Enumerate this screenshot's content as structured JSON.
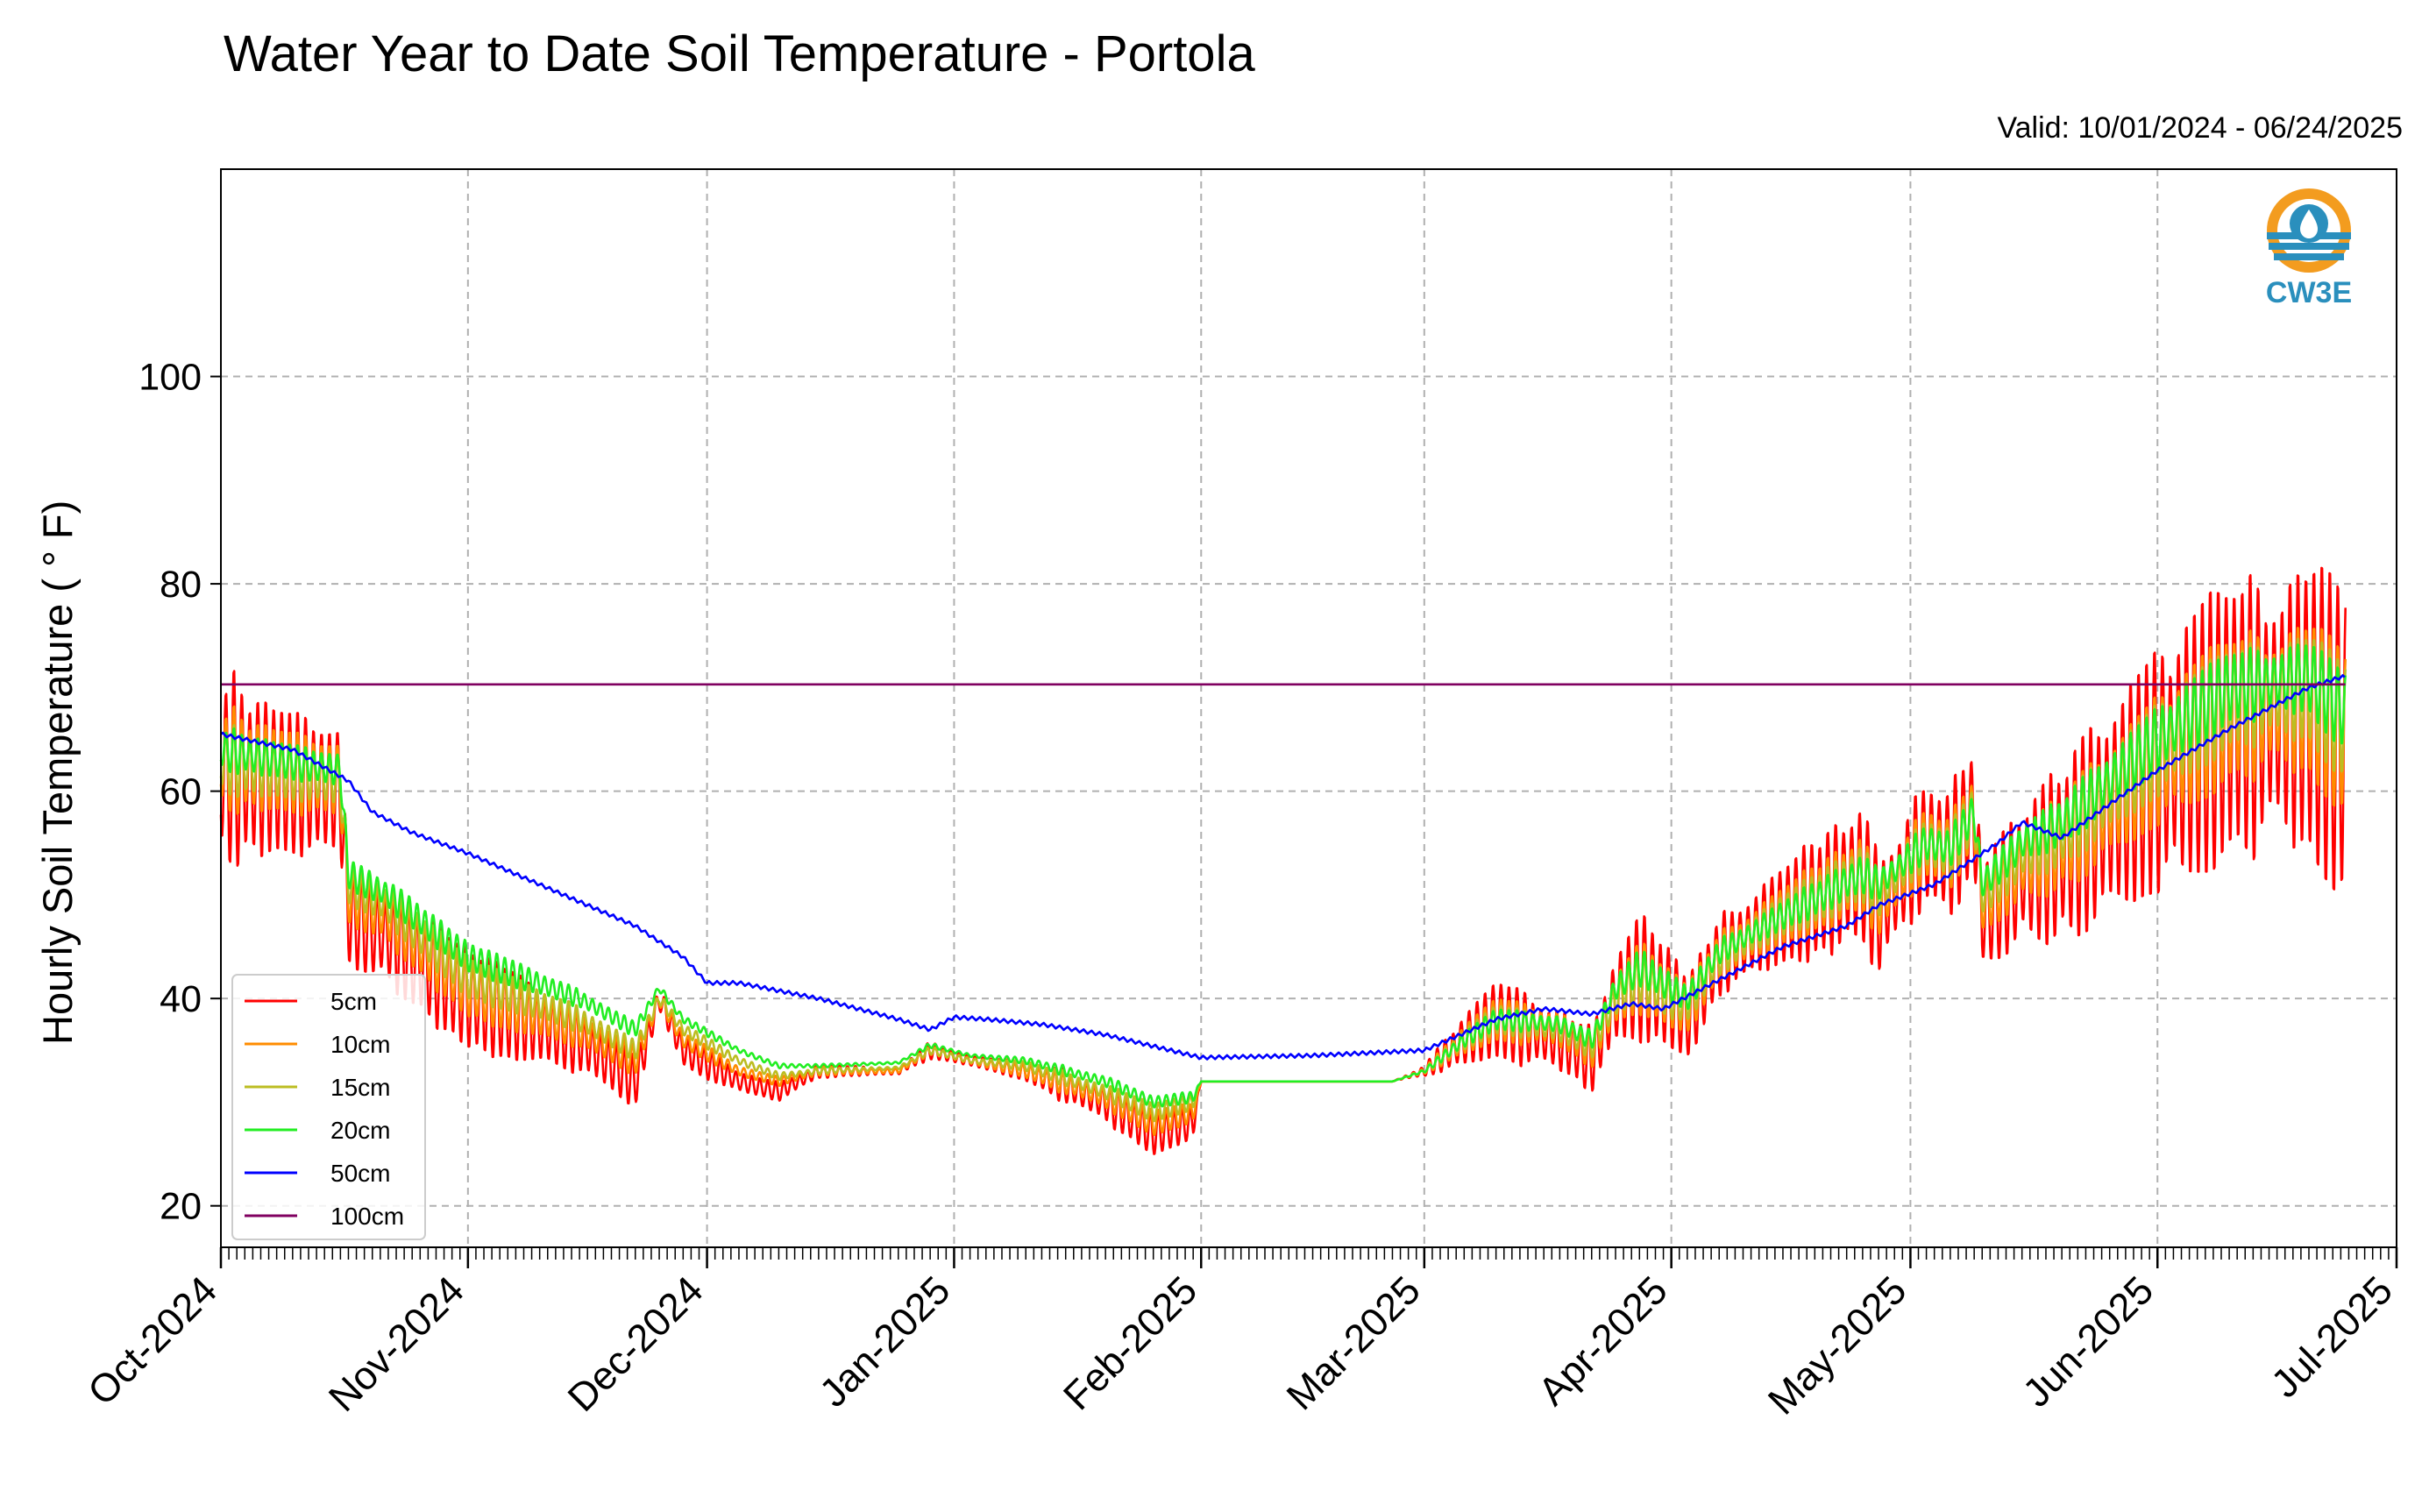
{
  "chart_data": {
    "type": "line",
    "title": "Water Year to Date Soil Temperature - Portola",
    "subtitle": "Valid: 10/01/2024 - 06/24/2025",
    "xlabel": "",
    "ylabel": "Hourly Soil Temperature ( ° F)",
    "xlim": [
      "2024-10-01",
      "2025-07-01"
    ],
    "ylim": [
      16,
      120
    ],
    "yticks": [
      20,
      40,
      60,
      80,
      100
    ],
    "xtick_labels": [
      "Oct-2024",
      "Nov-2024",
      "Dec-2024",
      "Jan-2025",
      "Feb-2025",
      "Mar-2025",
      "Apr-2025",
      "May-2025",
      "Jun-2025",
      "Jul-2025"
    ],
    "xtick_dates": [
      "2024-10-01",
      "2024-11-01",
      "2024-12-01",
      "2025-01-01",
      "2025-02-01",
      "2025-03-01",
      "2025-04-01",
      "2025-05-01",
      "2025-06-01",
      "2025-07-01"
    ],
    "grid": true,
    "legend_position": "bottom-left",
    "logo_text": "CW3E",
    "series": [
      {
        "name": "5cm",
        "color": "#ff0000",
        "style": "diurnal",
        "dates": [
          "2024-10-01",
          "2024-10-16",
          "2024-10-17",
          "2024-10-22",
          "2024-11-01",
          "2024-11-08",
          "2024-11-15",
          "2024-11-22",
          "2024-11-25",
          "2024-11-28",
          "2024-12-05",
          "2024-12-10",
          "2024-12-15",
          "2024-12-25",
          "2024-12-29",
          "2025-01-03",
          "2025-01-10",
          "2025-01-20",
          "2025-01-26",
          "2025-01-31",
          "2025-02-01",
          "2025-02-10",
          "2025-02-20",
          "2025-02-25",
          "2025-03-01",
          "2025-03-06",
          "2025-03-10",
          "2025-03-18",
          "2025-03-22",
          "2025-03-25",
          "2025-03-28",
          "2025-04-01",
          "2025-04-03",
          "2025-04-07",
          "2025-04-15",
          "2025-04-25",
          "2025-04-27",
          "2025-05-03",
          "2025-05-06",
          "2025-05-09",
          "2025-05-10",
          "2025-05-15",
          "2025-05-20",
          "2025-06-01",
          "2025-06-10",
          "2025-06-20",
          "2025-06-24"
        ],
        "means": [
          62,
          60,
          48,
          46,
          40,
          38,
          36,
          32,
          40,
          35,
          32,
          31,
          33,
          33,
          35,
          34,
          33,
          30,
          27,
          28,
          32,
          32,
          32,
          32,
          33,
          36,
          38,
          36,
          34,
          40,
          42,
          40,
          38,
          44,
          48,
          52,
          48,
          55,
          54,
          58,
          48,
          52,
          54,
          62,
          67,
          68,
          65
        ],
        "amplitudes": [
          22,
          15,
          10,
          10,
          12,
          10,
          9,
          5,
          3,
          4,
          2,
          2,
          1.5,
          1,
          2,
          1,
          3,
          5,
          6,
          4,
          0,
          0,
          0,
          0,
          1,
          6,
          8,
          8,
          7,
          12,
          14,
          12,
          8,
          10,
          12,
          14,
          13,
          15,
          14,
          16,
          11,
          16,
          20,
          26,
          30,
          32,
          32
        ]
      },
      {
        "name": "10cm",
        "color": "#ff8c00",
        "style": "diurnal",
        "dates": [
          "2024-10-01",
          "2024-10-16",
          "2024-10-17",
          "2024-10-22",
          "2024-11-01",
          "2024-11-08",
          "2024-11-15",
          "2024-11-22",
          "2024-11-25",
          "2024-11-28",
          "2024-12-05",
          "2024-12-10",
          "2024-12-15",
          "2024-12-25",
          "2024-12-29",
          "2025-01-03",
          "2025-01-10",
          "2025-01-20",
          "2025-01-26",
          "2025-01-31",
          "2025-02-01",
          "2025-02-10",
          "2025-02-20",
          "2025-02-25",
          "2025-03-01",
          "2025-03-06",
          "2025-03-10",
          "2025-03-18",
          "2025-03-22",
          "2025-03-25",
          "2025-03-28",
          "2025-04-01",
          "2025-04-03",
          "2025-04-07",
          "2025-04-15",
          "2025-04-25",
          "2025-04-27",
          "2025-05-03",
          "2025-05-06",
          "2025-05-09",
          "2025-05-10",
          "2025-05-15",
          "2025-05-20",
          "2025-06-01",
          "2025-06-10",
          "2025-06-20",
          "2025-06-24"
        ],
        "means": [
          63,
          61,
          50,
          48,
          41,
          39,
          37,
          34,
          40,
          36,
          33,
          32,
          33,
          33,
          35,
          34,
          33,
          30.5,
          28,
          29,
          32,
          32,
          32,
          32,
          33,
          36,
          38,
          37,
          35,
          40,
          42,
          40,
          39,
          44,
          48,
          52,
          49,
          55,
          54,
          58,
          49,
          53,
          55,
          63,
          68,
          69,
          66
        ],
        "amplitudes": [
          12,
          9,
          6,
          6,
          7,
          6,
          5,
          3,
          2,
          2,
          1,
          1,
          1,
          0.6,
          1,
          0.6,
          2,
          3,
          3.5,
          2.5,
          0,
          0,
          0,
          0,
          0.6,
          3.5,
          4.5,
          4.5,
          4,
          7,
          8,
          7,
          5,
          6,
          7,
          8,
          7,
          9,
          8,
          9,
          6,
          9,
          11,
          14,
          16,
          17,
          17
        ]
      },
      {
        "name": "15cm",
        "color": "#bcbd22",
        "style": "diurnal",
        "dates": [
          "2024-10-01",
          "2024-10-16",
          "2024-10-17",
          "2024-10-22",
          "2024-11-01",
          "2024-11-08",
          "2024-11-15",
          "2024-11-22",
          "2024-11-25",
          "2024-11-28",
          "2024-12-05",
          "2024-12-10",
          "2024-12-15",
          "2024-12-25",
          "2024-12-29",
          "2025-01-03",
          "2025-01-10",
          "2025-01-20",
          "2025-01-26",
          "2025-01-31",
          "2025-02-01",
          "2025-02-10",
          "2025-02-20",
          "2025-02-25",
          "2025-03-01",
          "2025-03-06",
          "2025-03-10",
          "2025-03-18",
          "2025-03-22",
          "2025-03-25",
          "2025-03-28",
          "2025-04-01",
          "2025-04-03",
          "2025-04-07",
          "2025-04-15",
          "2025-04-25",
          "2025-04-27",
          "2025-05-03",
          "2025-05-06",
          "2025-05-09",
          "2025-05-10",
          "2025-05-15",
          "2025-05-20",
          "2025-06-01",
          "2025-06-10",
          "2025-06-20",
          "2025-06-24"
        ],
        "means": [
          63,
          61,
          51,
          49,
          42,
          40,
          38,
          35,
          40,
          37,
          34,
          32.5,
          33,
          33.3,
          35,
          34,
          33.5,
          31,
          29,
          30,
          32,
          32,
          32,
          32,
          33,
          36,
          38,
          37,
          35.5,
          40,
          42,
          40,
          39.5,
          44,
          48,
          52,
          50,
          55,
          54,
          58,
          50,
          54,
          56,
          64,
          69,
          70,
          67
        ],
        "amplitudes": [
          8,
          6,
          4,
          4,
          5,
          4,
          3.5,
          2,
          1.5,
          1.5,
          0.8,
          0.8,
          0.6,
          0.4,
          0.8,
          0.4,
          1.5,
          2,
          2.5,
          2,
          0,
          0,
          0,
          0,
          0.4,
          2.5,
          3,
          3,
          3,
          5,
          5.5,
          5,
          3.5,
          4.5,
          5,
          6,
          5,
          6,
          6,
          7,
          4.5,
          6.5,
          8,
          10,
          11,
          12,
          12
        ]
      },
      {
        "name": "20cm",
        "color": "#22ee22",
        "style": "diurnal",
        "dates": [
          "2024-10-01",
          "2024-10-16",
          "2024-10-17",
          "2024-10-22",
          "2024-11-01",
          "2024-11-08",
          "2024-11-15",
          "2024-11-22",
          "2024-11-25",
          "2024-11-28",
          "2024-12-05",
          "2024-12-10",
          "2024-12-15",
          "2024-12-25",
          "2024-12-29",
          "2025-01-03",
          "2025-01-10",
          "2025-01-20",
          "2025-01-26",
          "2025-01-31",
          "2025-02-01",
          "2025-02-10",
          "2025-02-20",
          "2025-02-25",
          "2025-03-01",
          "2025-03-06",
          "2025-03-10",
          "2025-03-18",
          "2025-03-22",
          "2025-03-25",
          "2025-03-28",
          "2025-04-01",
          "2025-04-03",
          "2025-04-07",
          "2025-04-15",
          "2025-04-25",
          "2025-04-27",
          "2025-05-03",
          "2025-05-06",
          "2025-05-09",
          "2025-05-10",
          "2025-05-15",
          "2025-05-20",
          "2025-06-01",
          "2025-06-10",
          "2025-06-20",
          "2025-06-24"
        ],
        "means": [
          64,
          62,
          52,
          50,
          44,
          42,
          40,
          37,
          41,
          38,
          35,
          33.5,
          33.5,
          33.8,
          35.5,
          34.5,
          34,
          32,
          30,
          30.5,
          32,
          32,
          32,
          32,
          33,
          36,
          38,
          37.5,
          36,
          41,
          43,
          41,
          40,
          44.5,
          48,
          52,
          51,
          55,
          54.5,
          58,
          51,
          55,
          57,
          65,
          70,
          71,
          68
        ],
        "amplitudes": [
          5,
          4,
          3,
          3,
          3.5,
          3,
          2.5,
          1.5,
          1,
          1,
          0.5,
          0.5,
          0.4,
          0.3,
          0.6,
          0.3,
          1,
          1.5,
          1.5,
          1.5,
          0,
          0,
          0,
          0,
          0.3,
          1.8,
          2.2,
          2.2,
          2,
          3.5,
          4,
          3.5,
          2.5,
          3,
          3.5,
          4,
          3.5,
          4.5,
          4,
          5,
          3,
          4.5,
          5.5,
          7,
          8,
          8,
          8
        ]
      },
      {
        "name": "50cm",
        "color": "#0000ff",
        "style": "smooth",
        "dates": [
          "2024-10-01",
          "2024-10-10",
          "2024-10-17",
          "2024-10-20",
          "2024-10-25",
          "2024-11-01",
          "2024-11-10",
          "2024-11-22",
          "2024-11-28",
          "2024-12-01",
          "2024-12-05",
          "2024-12-15",
          "2024-12-25",
          "2024-12-29",
          "2025-01-01",
          "2025-01-05",
          "2025-01-12",
          "2025-01-20",
          "2025-02-01",
          "2025-02-15",
          "2025-03-01",
          "2025-03-10",
          "2025-03-16",
          "2025-03-22",
          "2025-03-27",
          "2025-03-31",
          "2025-04-05",
          "2025-04-15",
          "2025-04-23",
          "2025-04-27",
          "2025-05-04",
          "2025-05-12",
          "2025-05-15",
          "2025-05-20",
          "2025-06-01",
          "2025-06-10",
          "2025-06-20",
          "2025-06-24"
        ],
        "means": [
          65.5,
          64,
          61,
          58,
          56,
          54,
          51,
          47,
          44,
          41.5,
          41.5,
          40,
          38,
          37,
          38.2,
          38,
          37.5,
          36.5,
          34.3,
          34.5,
          35,
          38,
          39,
          38.5,
          39.5,
          39,
          41,
          45,
          47,
          49,
          51,
          55,
          57,
          55.5,
          62,
          66,
          70,
          71
        ]
      },
      {
        "name": "100cm",
        "color": "#800060",
        "style": "flat",
        "value": 70.3
      }
    ]
  }
}
